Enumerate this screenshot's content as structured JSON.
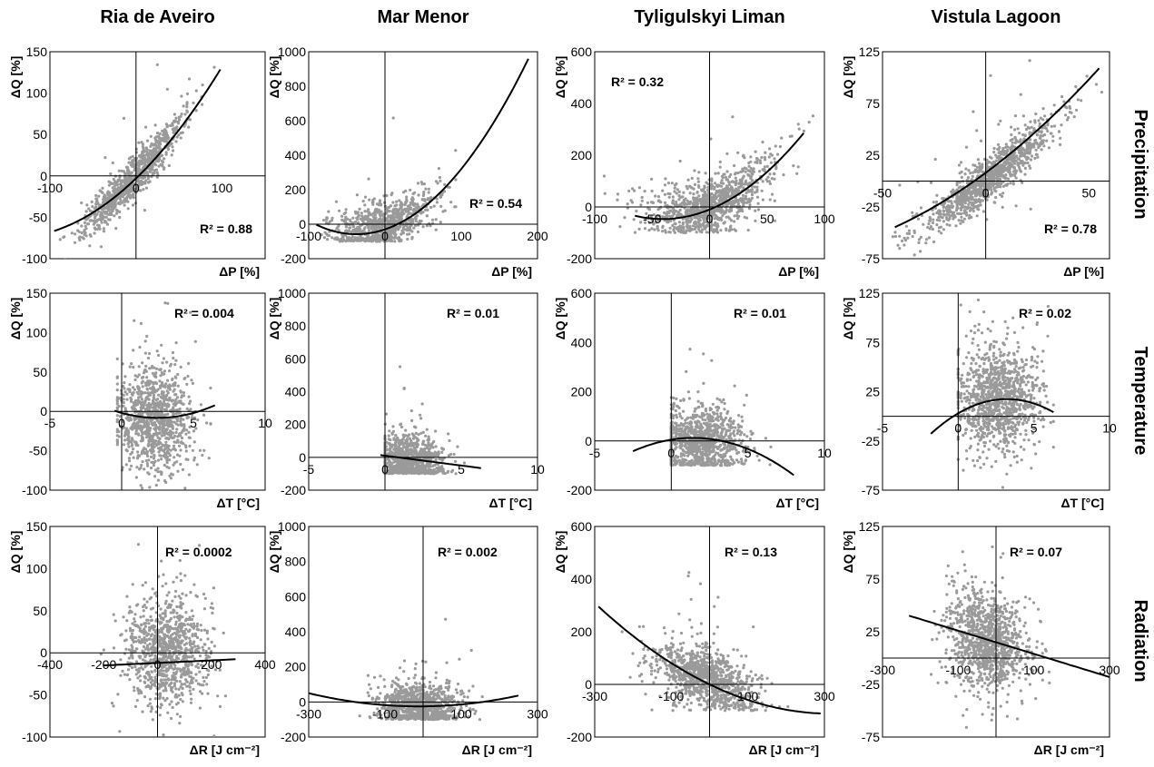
{
  "column_titles": [
    "Ria de Aveiro",
    "Mar Menor",
    "Tyligulskyi Liman",
    "Vistula Lagoon"
  ],
  "row_labels": [
    "Precipitation",
    "Temperature",
    "Radiation"
  ],
  "colors": {
    "points": "#9a9a9a",
    "fit": "#000000",
    "frame": "#000000"
  },
  "chart_data": [
    {
      "type": "scatter",
      "site": "Ria de Aveiro",
      "driver": "Precipitation",
      "xlabel": "ΔP [%]",
      "ylabel": "ΔQ [%]",
      "r2_label": "R² = 0.88",
      "xlim": [
        -100,
        150
      ],
      "ylim": [
        -100,
        150
      ],
      "x_ticks": [
        -100,
        0,
        100
      ],
      "y_ticks": [
        150,
        100,
        50,
        0,
        -50,
        -100
      ],
      "point_cloud": {
        "n": 900,
        "x_mean": -5,
        "x_sd": 30,
        "slope": 1.1,
        "curvature": 0.002,
        "noise_sd": 12,
        "x_min": -100,
        "x_max": 95
      },
      "fit": {
        "a": -3,
        "b": 1.0,
        "c": 0.0035,
        "x_range": [
          -95,
          98
        ]
      }
    },
    {
      "type": "scatter",
      "site": "Mar Menor",
      "driver": "Precipitation",
      "xlabel": "ΔP [%]",
      "ylabel": "ΔQ [%]",
      "r2_label": "R² = 0.54",
      "xlim": [
        -100,
        200
      ],
      "ylim": [
        -200,
        1000
      ],
      "x_ticks": [
        -100,
        0,
        100,
        200
      ],
      "y_ticks": [
        1000,
        800,
        600,
        400,
        200,
        0,
        -200
      ],
      "point_cloud": {
        "n": 800,
        "x_mean": 0,
        "x_sd": 35,
        "slope": 1.2,
        "curvature": 0.012,
        "noise_sd": 70,
        "x_min": -100,
        "x_max": 185,
        "y_floor": -100
      },
      "fit": {
        "a": -30,
        "b": 1.5,
        "c": 0.02,
        "x_range": [
          -90,
          188
        ]
      }
    },
    {
      "type": "scatter",
      "site": "Tyligulskyi Liman",
      "driver": "Precipitation",
      "xlabel": "ΔP [%]",
      "ylabel": "ΔQ [%]",
      "r2_label": "R² = 0.32",
      "xlim": [
        -100,
        100
      ],
      "ylim": [
        -200,
        600
      ],
      "x_ticks": [
        -100,
        -50,
        0,
        50,
        100
      ],
      "y_ticks": [
        600,
        400,
        200,
        0,
        -200
      ],
      "point_cloud": {
        "n": 1000,
        "x_mean": 0,
        "x_sd": 28,
        "slope": 1.5,
        "curvature": 0.025,
        "noise_sd": 55,
        "x_min": -95,
        "x_max": 90,
        "y_floor": -100
      },
      "fit": {
        "a": -10,
        "b": 1.8,
        "c": 0.022,
        "x_range": [
          -65,
          82
        ]
      }
    },
    {
      "type": "scatter",
      "site": "Vistula Lagoon",
      "driver": "Precipitation",
      "xlabel": "ΔP [%]",
      "ylabel": "ΔQ [%]",
      "r2_label": "R² = 0.78",
      "xlim": [
        -50,
        60
      ],
      "ylim": [
        -75,
        125
      ],
      "x_ticks": [
        -50,
        0,
        50
      ],
      "y_ticks": [
        125,
        75,
        25,
        -25,
        -75
      ],
      "point_cloud": {
        "n": 1100,
        "x_mean": 2,
        "x_sd": 16,
        "slope": 1.5,
        "curvature": 0.005,
        "noise_sd": 11,
        "x_min": -45,
        "x_max": 58
      },
      "fit": {
        "a": 8,
        "b": 1.48,
        "c": 0.0065,
        "x_range": [
          -44,
          55
        ]
      }
    },
    {
      "type": "scatter",
      "site": "Ria de Aveiro",
      "driver": "Temperature",
      "xlabel": "ΔT [°C]",
      "ylabel": "ΔQ [%]",
      "r2_label": "R² = 0.004",
      "xlim": [
        -5,
        10
      ],
      "ylim": [
        -100,
        150
      ],
      "x_ticks": [
        -5,
        0,
        5,
        10
      ],
      "y_ticks": [
        150,
        100,
        50,
        0,
        -50,
        -100
      ],
      "point_cloud": {
        "n": 1000,
        "x_mean": 2.3,
        "x_sd": 1.3,
        "slope": 0,
        "curvature": 0,
        "noise_sd": 32,
        "x_min": -0.3,
        "x_max": 6.2,
        "y_offset": -10
      },
      "fit": {
        "a": -2,
        "b": -5,
        "c": 1.0,
        "x_range": [
          -0.5,
          6.5
        ]
      }
    },
    {
      "type": "scatter",
      "site": "Mar Menor",
      "driver": "Temperature",
      "xlabel": "ΔT [°C]",
      "ylabel": "ΔQ [%]",
      "r2_label": "R² = 0.01",
      "xlim": [
        -5,
        10
      ],
      "ylim": [
        -200,
        1000
      ],
      "x_ticks": [
        -5,
        0,
        5,
        10
      ],
      "y_ticks": [
        1000,
        800,
        600,
        400,
        200,
        0,
        -200
      ],
      "point_cloud": {
        "n": 900,
        "x_mean": 1.6,
        "x_sd": 1.1,
        "slope": -8,
        "curvature": 0,
        "noise_sd": 80,
        "x_min": 0,
        "x_max": 5.8,
        "y_floor": -100,
        "y_offset": -10
      },
      "fit": {
        "a": 10,
        "b": -12,
        "c": 0,
        "x_range": [
          -0.3,
          6.3
        ]
      }
    },
    {
      "type": "scatter",
      "site": "Tyligulskyi Liman",
      "driver": "Temperature",
      "xlabel": "ΔT [°C]",
      "ylabel": "ΔQ [%]",
      "r2_label": "R² = 0.01",
      "xlim": [
        -5,
        10
      ],
      "ylim": [
        -200,
        600
      ],
      "x_ticks": [
        -5,
        0,
        5,
        10
      ],
      "y_ticks": [
        600,
        400,
        200,
        0,
        -200
      ],
      "point_cloud": {
        "n": 1000,
        "x_mean": 2.0,
        "x_sd": 1.4,
        "slope": 0,
        "curvature": 0,
        "noise_sd": 70,
        "x_min": 0,
        "x_max": 7,
        "y_floor": -100
      },
      "fit": {
        "a": 5,
        "b": 10,
        "c": -3.5,
        "x_range": [
          -2.5,
          8
        ]
      }
    },
    {
      "type": "scatter",
      "site": "Vistula Lagoon",
      "driver": "Temperature",
      "xlabel": "ΔT [°C]",
      "ylabel": "ΔQ [%]",
      "r2_label": "R² = 0.02",
      "xlim": [
        -5,
        10
      ],
      "ylim": [
        -75,
        125
      ],
      "x_ticks": [
        -5,
        0,
        5,
        10
      ],
      "y_ticks": [
        125,
        75,
        25,
        -25,
        -75
      ],
      "point_cloud": {
        "n": 1100,
        "x_mean": 2.6,
        "x_sd": 1.4,
        "slope": 0,
        "curvature": 0,
        "noise_sd": 27,
        "x_min": 0,
        "x_max": 6.3,
        "y_offset": 20
      },
      "fit": {
        "a": 3,
        "b": 9,
        "c": -1.4,
        "x_range": [
          -1.8,
          6.3
        ]
      }
    },
    {
      "type": "scatter",
      "site": "Ria de Aveiro",
      "driver": "Radiation",
      "xlabel": "ΔR [J cm⁻²]",
      "ylabel": "ΔQ [%]",
      "r2_label": "R² = 0.0002",
      "xlim": [
        -400,
        400
      ],
      "ylim": [
        -100,
        150
      ],
      "x_ticks": [
        -400,
        -200,
        0,
        200,
        400
      ],
      "y_ticks": [
        150,
        100,
        50,
        0,
        -50,
        -100
      ],
      "point_cloud": {
        "n": 1000,
        "x_mean": 30,
        "x_sd": 75,
        "slope": 0,
        "curvature": 0,
        "noise_sd": 32,
        "x_min": -210,
        "x_max": 290,
        "y_offset": 0
      },
      "fit": {
        "a": -12,
        "b": 0.015,
        "c": 0,
        "x_range": [
          -200,
          290
        ]
      }
    },
    {
      "type": "scatter",
      "site": "Mar Menor",
      "driver": "Radiation",
      "xlabel": "ΔR [J cm⁻²]",
      "ylabel": "ΔQ [%]",
      "r2_label": "R² = 0.002",
      "xlim": [
        -300,
        300
      ],
      "ylim": [
        -200,
        1000
      ],
      "x_ticks": [
        -300,
        -100,
        100,
        300
      ],
      "y_ticks": [
        1000,
        800,
        600,
        400,
        200,
        0,
        -200
      ],
      "point_cloud": {
        "n": 900,
        "x_mean": -10,
        "x_sd": 55,
        "slope": 0,
        "curvature": 0,
        "noise_sd": 70,
        "x_min": -290,
        "x_max": 240,
        "y_floor": -100,
        "y_offset": -20
      },
      "fit": {
        "a": -25,
        "b": 0.02,
        "c": 0.0009,
        "x_range": [
          -300,
          250
        ]
      }
    },
    {
      "type": "scatter",
      "site": "Tyligulskyi Liman",
      "driver": "Radiation",
      "xlabel": "ΔR [J cm⁻²]",
      "ylabel": "ΔQ [%]",
      "r2_label": "R² = 0.13",
      "xlim": [
        -300,
        300
      ],
      "ylim": [
        -200,
        600
      ],
      "x_ticks": [
        -300,
        -100,
        100,
        300
      ],
      "y_ticks": [
        600,
        400,
        200,
        0,
        -200
      ],
      "point_cloud": {
        "n": 1000,
        "x_mean": -15,
        "x_sd": 65,
        "slope": -0.5,
        "curvature": 0,
        "noise_sd": 55,
        "x_min": -290,
        "x_max": 270,
        "y_floor": -100,
        "y_offset": 20
      },
      "fit": {
        "a": 0,
        "b": -0.7,
        "c": 0.0011,
        "x_range": [
          -290,
          290
        ]
      }
    },
    {
      "type": "scatter",
      "site": "Vistula Lagoon",
      "driver": "Radiation",
      "xlabel": "ΔR [J cm⁻²]",
      "ylabel": "ΔQ [%]",
      "r2_label": "R² = 0.07",
      "xlim": [
        -300,
        300
      ],
      "ylim": [
        -75,
        125
      ],
      "x_ticks": [
        -300,
        -100,
        100,
        300
      ],
      "y_ticks": [
        125,
        75,
        25,
        -25,
        -75
      ],
      "point_cloud": {
        "n": 1100,
        "x_mean": -25,
        "x_sd": 55,
        "slope": -0.09,
        "curvature": 0,
        "noise_sd": 22,
        "x_min": -230,
        "x_max": 280,
        "y_offset": 15
      },
      "fit": {
        "a": 15,
        "b": -0.11,
        "c": 0,
        "x_range": [
          -230,
          300
        ]
      }
    }
  ]
}
